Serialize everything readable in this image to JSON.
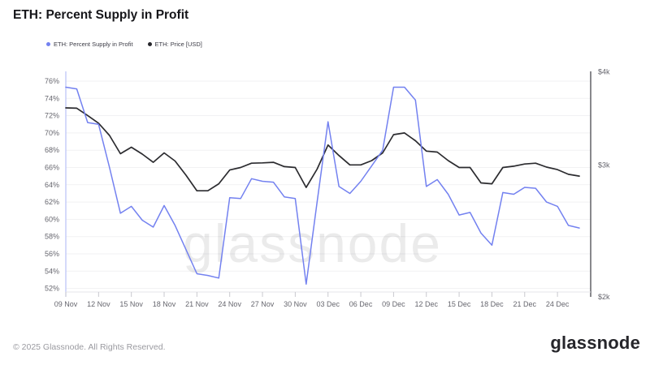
{
  "header": {
    "title": "ETH: Percent Supply in Profit"
  },
  "legend": {
    "items": [
      {
        "label": "ETH: Percent Supply in Profit",
        "color": "#7381f0"
      },
      {
        "label": "ETH: Price [USD]",
        "color": "#26262b"
      }
    ]
  },
  "watermark": "glassnode",
  "chart_data": {
    "type": "line",
    "title": "ETH: Percent Supply in Profit",
    "grid": "horizontal",
    "legend_position": "top-left",
    "x": [
      "09 Nov",
      "10 Nov",
      "11 Nov",
      "12 Nov",
      "13 Nov",
      "14 Nov",
      "15 Nov",
      "16 Nov",
      "17 Nov",
      "18 Nov",
      "19 Nov",
      "20 Nov",
      "21 Nov",
      "22 Nov",
      "23 Nov",
      "24 Nov",
      "25 Nov",
      "26 Nov",
      "27 Nov",
      "28 Nov",
      "29 Nov",
      "30 Nov",
      "01 Dec",
      "02 Dec",
      "03 Dec",
      "04 Dec",
      "05 Dec",
      "06 Dec",
      "07 Dec",
      "08 Dec",
      "09 Dec",
      "10 Dec",
      "11 Dec",
      "12 Dec",
      "13 Dec",
      "14 Dec",
      "15 Dec",
      "16 Dec",
      "17 Dec",
      "18 Dec",
      "19 Dec",
      "20 Dec",
      "21 Dec",
      "22 Dec",
      "23 Dec",
      "24 Dec",
      "25 Dec",
      "26 Dec"
    ],
    "x_tick_labels": [
      "09 Nov",
      "12 Nov",
      "15 Nov",
      "18 Nov",
      "21 Nov",
      "24 Nov",
      "27 Nov",
      "30 Nov",
      "03 Dec",
      "06 Dec",
      "09 Dec",
      "12 Dec",
      "15 Dec",
      "18 Dec",
      "21 Dec",
      "24 Dec"
    ],
    "series": [
      {
        "name": "ETH: Percent Supply in Profit",
        "axis": "left",
        "unit": "%",
        "color": "#7381f0",
        "values": [
          75.3,
          75.1,
          71.2,
          71.0,
          66.0,
          60.7,
          61.5,
          59.9,
          59.1,
          61.6,
          59.3,
          56.5,
          53.7,
          53.5,
          53.2,
          62.5,
          62.4,
          64.7,
          64.4,
          64.3,
          62.6,
          62.4,
          52.5,
          62.0,
          71.3,
          63.8,
          63.0,
          64.4,
          66.2,
          68.0,
          75.3,
          75.3,
          73.8,
          63.8,
          64.6,
          62.9,
          60.5,
          60.8,
          58.4,
          57.0,
          63.1,
          62.9,
          63.7,
          63.6,
          62.0,
          61.5,
          59.3,
          59.0
        ]
      },
      {
        "name": "ETH: Price [USD]",
        "axis": "right",
        "unit": "USD",
        "color": "#2b2b2f",
        "values": [
          3578,
          3574,
          3495,
          3413,
          3287,
          3107,
          3170,
          3103,
          3026,
          3115,
          3038,
          2908,
          2772,
          2772,
          2832,
          2955,
          2978,
          3018,
          3021,
          3026,
          2986,
          2978,
          2801,
          2963,
          3191,
          3090,
          3002,
          3002,
          3042,
          3115,
          3295,
          3312,
          3234,
          3132,
          3123,
          3042,
          2978,
          2978,
          2840,
          2832,
          2978,
          2990,
          3010,
          3018,
          2982,
          2959,
          2916,
          2900
        ]
      }
    ],
    "y_left": {
      "scale": "linear",
      "min": 52,
      "max": 76,
      "tick_step": 2,
      "tick_labels": [
        "76%",
        "74%",
        "72%",
        "70%",
        "68%",
        "66%",
        "64%",
        "62%",
        "60%",
        "58%",
        "56%",
        "54%",
        "52%"
      ]
    },
    "y_right": {
      "scale": "log",
      "min": 2000,
      "max": 4000,
      "tick_labels": [
        "$4k",
        "$3k",
        "$2k"
      ],
      "tick_values": [
        4000,
        3000,
        2000
      ]
    }
  },
  "footer": {
    "copyright": "© 2025 Glassnode. All Rights Reserved.",
    "logo_text": "glassnode"
  }
}
